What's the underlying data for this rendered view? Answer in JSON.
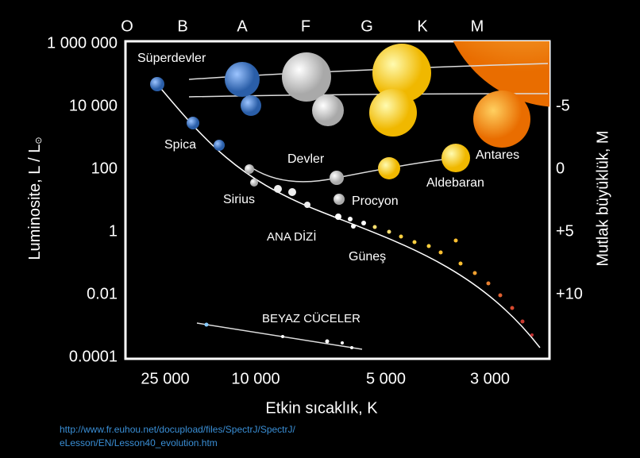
{
  "spectral_classes": [
    "O",
    "B",
    "A",
    "F",
    "G",
    "K",
    "M"
  ],
  "y_axis": {
    "label": "Luminosite, L / L",
    "sun_symbol": "⊙",
    "ticks": [
      "1 000 000",
      "10 000",
      "100",
      "1",
      "0.01",
      "0.0001"
    ]
  },
  "y2_axis": {
    "label": "Mutlak büyüklük, M",
    "ticks": [
      "-5",
      "0",
      "+5",
      "+10"
    ]
  },
  "x_axis": {
    "label": "Etkin sıcaklık, K",
    "ticks": [
      "25 000",
      "10 000",
      "5 000",
      "3 000"
    ]
  },
  "regions": {
    "supergiants": "Süperdevler",
    "giants": "Devler",
    "main_sequence": "ANA DİZİ",
    "white_dwarfs": "BEYAZ CÜCELER"
  },
  "stars": {
    "spica": "Spica",
    "sirius": "Sirius",
    "procyon": "Procyon",
    "aldebaran": "Aldebaran",
    "antares": "Antares",
    "sun": "Güneş"
  },
  "source": [
    "http://www.fr.euhou.net/docupload/files/SpectrJ/SpectrJ/",
    "eLesson/EN/Lesson40_evolution.htm"
  ]
}
